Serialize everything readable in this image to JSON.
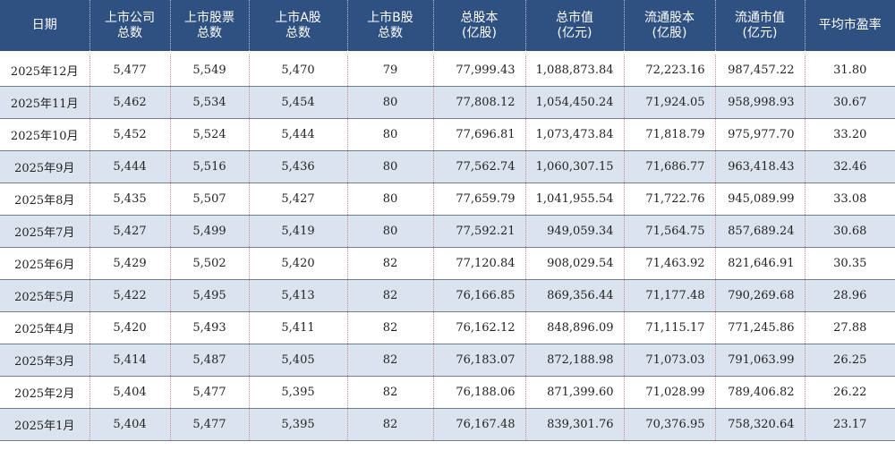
{
  "headers": [
    [
      "日期"
    ],
    [
      "上市公司",
      "总数"
    ],
    [
      "上市股票",
      "总数"
    ],
    [
      "上市A股",
      "总数"
    ],
    [
      "上市B股",
      "总数"
    ],
    [
      "总股本",
      "(亿股)"
    ],
    [
      "总市值",
      "(亿元)"
    ],
    [
      "流通股本",
      "(亿股)"
    ],
    [
      "流通市值",
      "(亿元)"
    ],
    [
      "平均市盈率"
    ]
  ],
  "rows": [
    [
      "2025年12月",
      "5,477",
      "5,549",
      "5,470",
      "79",
      "77,999.43",
      "1,088,873.84",
      "72,223.16",
      "987,457.22",
      "31.80"
    ],
    [
      "2025年11月",
      "5,462",
      "5,534",
      "5,454",
      "80",
      "77,808.12",
      "1,054,450.24",
      "71,924.05",
      "958,998.93",
      "30.67"
    ],
    [
      "2025年10月",
      "5,452",
      "5,524",
      "5,444",
      "80",
      "77,696.81",
      "1,073,473.84",
      "71,818.79",
      "975,977.70",
      "33.20"
    ],
    [
      "2025年9月",
      "5,444",
      "5,516",
      "5,436",
      "80",
      "77,562.74",
      "1,060,307.15",
      "71,686.77",
      "963,418.43",
      "32.46"
    ],
    [
      "2025年8月",
      "5,435",
      "5,507",
      "5,427",
      "80",
      "77,659.79",
      "1,041,955.54",
      "71,722.76",
      "945,089.99",
      "33.08"
    ],
    [
      "2025年7月",
      "5,427",
      "5,499",
      "5,419",
      "80",
      "77,592.21",
      "949,059.34",
      "71,564.75",
      "857,689.24",
      "30.68"
    ],
    [
      "2025年6月",
      "5,429",
      "5,502",
      "5,420",
      "82",
      "77,120.84",
      "908,029.54",
      "71,463.92",
      "821,646.91",
      "30.35"
    ],
    [
      "2025年5月",
      "5,422",
      "5,495",
      "5,413",
      "82",
      "76,166.85",
      "869,356.44",
      "71,177.48",
      "790,269.68",
      "28.96"
    ],
    [
      "2025年4月",
      "5,420",
      "5,493",
      "5,411",
      "82",
      "76,162.12",
      "848,896.09",
      "71,115.17",
      "771,245.86",
      "27.88"
    ],
    [
      "2025年3月",
      "5,414",
      "5,487",
      "5,405",
      "82",
      "76,183.07",
      "872,188.98",
      "71,073.03",
      "791,063.99",
      "26.25"
    ],
    [
      "2025年2月",
      "5,404",
      "5,477",
      "5,395",
      "82",
      "76,188.06",
      "871,399.60",
      "71,028.99",
      "789,406.82",
      "26.22"
    ],
    [
      "2025年1月",
      "5,404",
      "5,477",
      "5,395",
      "82",
      "76,167.48",
      "839,301.76",
      "70,376.95",
      "758,320.64",
      "23.17"
    ]
  ],
  "colors": {
    "header_bg": "#2f5181",
    "header_text": "#ffffff",
    "row_alt_bg": "#dbe4ee",
    "divider": "#c98b95"
  }
}
